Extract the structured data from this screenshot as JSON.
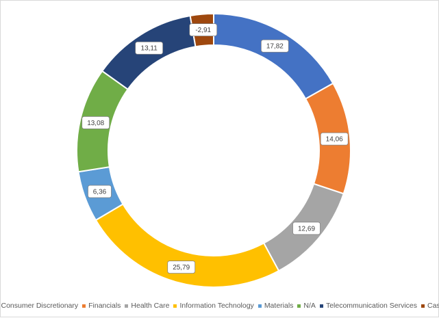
{
  "chart_data": {
    "type": "pie",
    "subtype": "donut",
    "title": "",
    "categories": [
      "Consumer Discretionary",
      "Financials",
      "Health Care",
      "Information Technology",
      "Materials",
      "N/A",
      "Telecommunication Services",
      "Cash"
    ],
    "values": [
      17.82,
      14.06,
      12.69,
      25.79,
      6.36,
      13.08,
      13.11,
      -2.91
    ],
    "data_labels": [
      "17,82",
      "14,06",
      "12,69",
      "25,79",
      "6,36",
      "13,08",
      "13,11",
      "-2,91"
    ],
    "colors": [
      "#4472C4",
      "#ED7D31",
      "#A5A5A5",
      "#FFC000",
      "#5B9BD5",
      "#70AD47",
      "#264478",
      "#9E480E"
    ],
    "legend_position": "bottom"
  }
}
